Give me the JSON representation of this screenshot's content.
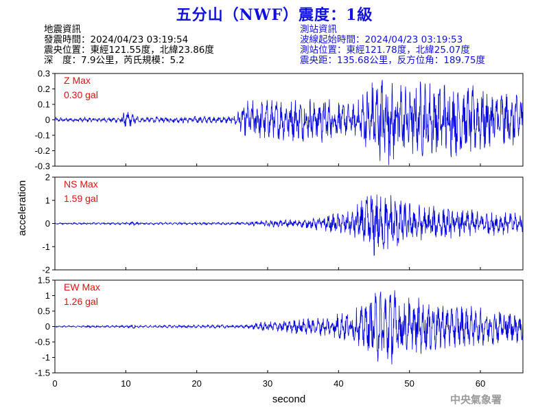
{
  "title": "五分山（NWF）震度：1級",
  "quake_info": {
    "header": "地震資訊",
    "origin_time": "發震時間：2024/04/23 03:19:54",
    "epicenter": "震央位置：東經121.55度，北緯23.86度",
    "depth_magnitude": "深　度：7.9公里，芮氏規模：5.2"
  },
  "station_info": {
    "header": "測站資訊",
    "wave_start": "波線起始時間：2024/04/23 03:19:53",
    "location": "測站位置：東經121.78度，北緯25.07度",
    "distance_azimuth": "震央距：135.68公里，反方位角：189.75度"
  },
  "agency": "中央氣象署",
  "colors": {
    "trace": "#0000e0",
    "title": "#1010e0",
    "max_label": "#e01010",
    "agency": "#9a9a9a"
  },
  "chart_data": {
    "type": "line",
    "xlabel": "second",
    "ylabel": "acceleration",
    "xlim": [
      0,
      66
    ],
    "x_ticks": [
      "0",
      "10",
      "20",
      "30",
      "40",
      "50",
      "60"
    ],
    "grid": false,
    "panels": [
      {
        "component": "Z",
        "max_label": "Z Max",
        "max_value": "0.30 gal",
        "ylim": [
          -0.3,
          0.3
        ],
        "y_ticks": [
          "0.3",
          "0.2",
          "0.1",
          "0",
          "-0.1",
          "-0.2",
          "-0.3"
        ],
        "envelope": [
          [
            0,
            0.012
          ],
          [
            9,
            0.014
          ],
          [
            10,
            0.05
          ],
          [
            11,
            0.03
          ],
          [
            12,
            0.015
          ],
          [
            25,
            0.02
          ],
          [
            26,
            0.05
          ],
          [
            27,
            0.1
          ],
          [
            33,
            0.11
          ],
          [
            38,
            0.12
          ],
          [
            42,
            0.08
          ],
          [
            43,
            0.12
          ],
          [
            45,
            0.22
          ],
          [
            47,
            0.25
          ],
          [
            49,
            0.2
          ],
          [
            55,
            0.2
          ],
          [
            60,
            0.17
          ],
          [
            65,
            0.16
          ],
          [
            66,
            0.15
          ]
        ]
      },
      {
        "component": "NS",
        "max_label": "NS Max",
        "max_value": "1.59 gal",
        "ylim": [
          -2,
          2
        ],
        "y_ticks": [
          "2",
          "1",
          "0",
          "-1",
          "-2"
        ],
        "envelope": [
          [
            0,
            0.03
          ],
          [
            10,
            0.04
          ],
          [
            11,
            0.08
          ],
          [
            12,
            0.04
          ],
          [
            27,
            0.05
          ],
          [
            28,
            0.1
          ],
          [
            35,
            0.15
          ],
          [
            42,
            0.45
          ],
          [
            43,
            0.8
          ],
          [
            45,
            1.25
          ],
          [
            47,
            1.1
          ],
          [
            50,
            0.7
          ],
          [
            55,
            0.55
          ],
          [
            60,
            0.45
          ],
          [
            66,
            0.35
          ]
        ]
      },
      {
        "component": "EW",
        "max_label": "EW Max",
        "max_value": "1.26 gal",
        "ylim": [
          -1.5,
          1.5
        ],
        "y_ticks": [
          "1.5",
          "1",
          "0.5",
          "0",
          "-0.5",
          "-1",
          "-1.5"
        ],
        "envelope": [
          [
            0,
            0.02
          ],
          [
            10,
            0.03
          ],
          [
            11,
            0.06
          ],
          [
            12,
            0.03
          ],
          [
            27,
            0.05
          ],
          [
            29,
            0.12
          ],
          [
            38,
            0.25
          ],
          [
            43,
            0.5
          ],
          [
            45,
            0.85
          ],
          [
            47,
            1.1
          ],
          [
            49,
            0.8
          ],
          [
            55,
            0.6
          ],
          [
            60,
            0.5
          ],
          [
            66,
            0.45
          ]
        ]
      }
    ]
  }
}
